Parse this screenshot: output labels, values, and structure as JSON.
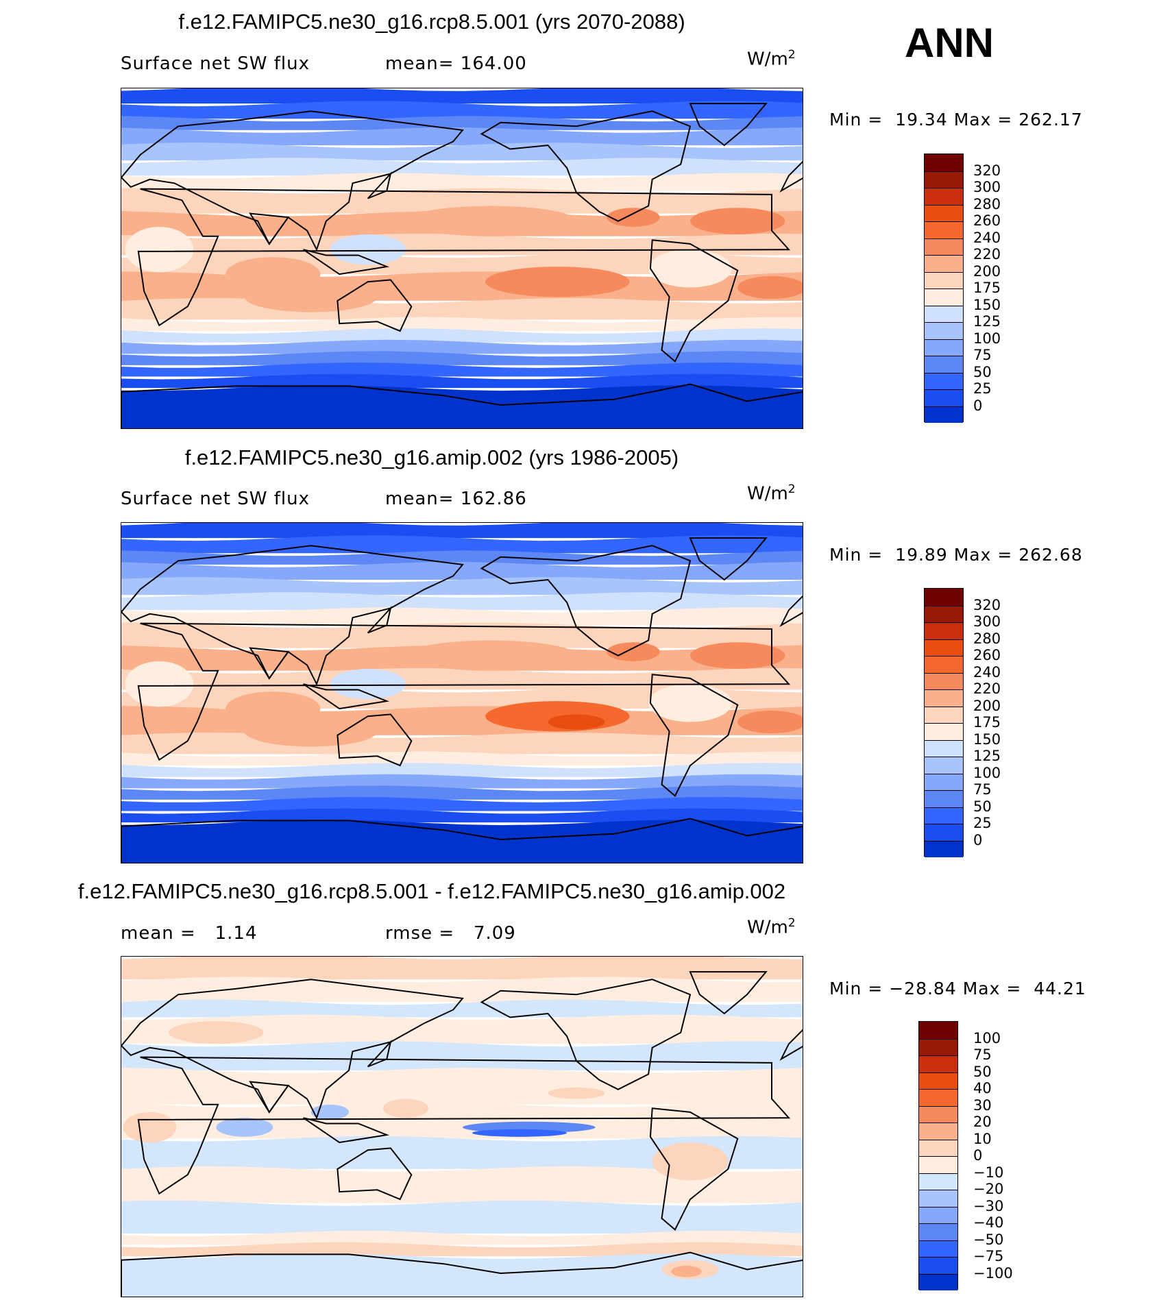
{
  "season": "ANN",
  "colors": {
    "abs": [
      "#000f80",
      "#0022a8",
      "#0033cc",
      "#1a4df2",
      "#3366ff",
      "#5c87f5",
      "#85a8fa",
      "#a8c4fc",
      "#cfe1fc",
      "#ffeee0",
      "#fdd4bc",
      "#fab08a",
      "#f78a5c",
      "#f5692e",
      "#e84d12",
      "#c92e0d",
      "#961a05",
      "#6e0000"
    ],
    "diff": [
      "#000f80",
      "#0022a8",
      "#0033cc",
      "#1a4df2",
      "#3366ff",
      "#5c87f5",
      "#85a8fa",
      "#a8c4fc",
      "#d3e6fb",
      "#ffeee0",
      "#fdd4bc",
      "#fab08a",
      "#f78a5c",
      "#f5692e",
      "#e84d12",
      "#c92e0d",
      "#961a05",
      "#6e0000"
    ]
  },
  "chart_data": [
    {
      "type": "heatmap",
      "title": "f.e12.FAMIPC5.ne30_g16.rcp8.5.001 (yrs 2070-2088)",
      "variable": "Surface net SW flux",
      "stat1_label": "mean=",
      "stat1_value": "164.00",
      "units_base": "W/m",
      "units_exp": "2",
      "min_label": "Min =",
      "min_value": "19.34",
      "max_label": "Max =",
      "max_value": "262.17",
      "levels": [
        "320",
        "300",
        "280",
        "260",
        "240",
        "220",
        "200",
        "175",
        "150",
        "125",
        "100",
        "75",
        "50",
        "25",
        "0"
      ]
    },
    {
      "type": "heatmap",
      "title": "f.e12.FAMIPC5.ne30_g16.amip.002 (yrs 1986-2005)",
      "variable": "Surface net SW flux",
      "stat1_label": "mean=",
      "stat1_value": "162.86",
      "units_base": "W/m",
      "units_exp": "2",
      "min_label": "Min =",
      "min_value": "19.89",
      "max_label": "Max =",
      "max_value": "262.68",
      "levels": [
        "320",
        "300",
        "280",
        "260",
        "240",
        "220",
        "200",
        "175",
        "150",
        "125",
        "100",
        "75",
        "50",
        "25",
        "0"
      ]
    },
    {
      "type": "heatmap",
      "title": "f.e12.FAMIPC5.ne30_g16.rcp8.5.001 - f.e12.FAMIPC5.ne30_g16.amip.002",
      "mean_label": "mean =",
      "mean_value": "1.14",
      "rmse_label": "rmse =",
      "rmse_value": "7.09",
      "units_base": "W/m",
      "units_exp": "2",
      "min_label": "Min =",
      "min_value": "−28.84",
      "max_label": "Max =",
      "max_value": "44.21",
      "levels": [
        "100",
        "75",
        "50",
        "40",
        "30",
        "20",
        "10",
        "0",
        "−10",
        "−20",
        "−30",
        "−40",
        "−50",
        "−75",
        "−100"
      ]
    }
  ]
}
